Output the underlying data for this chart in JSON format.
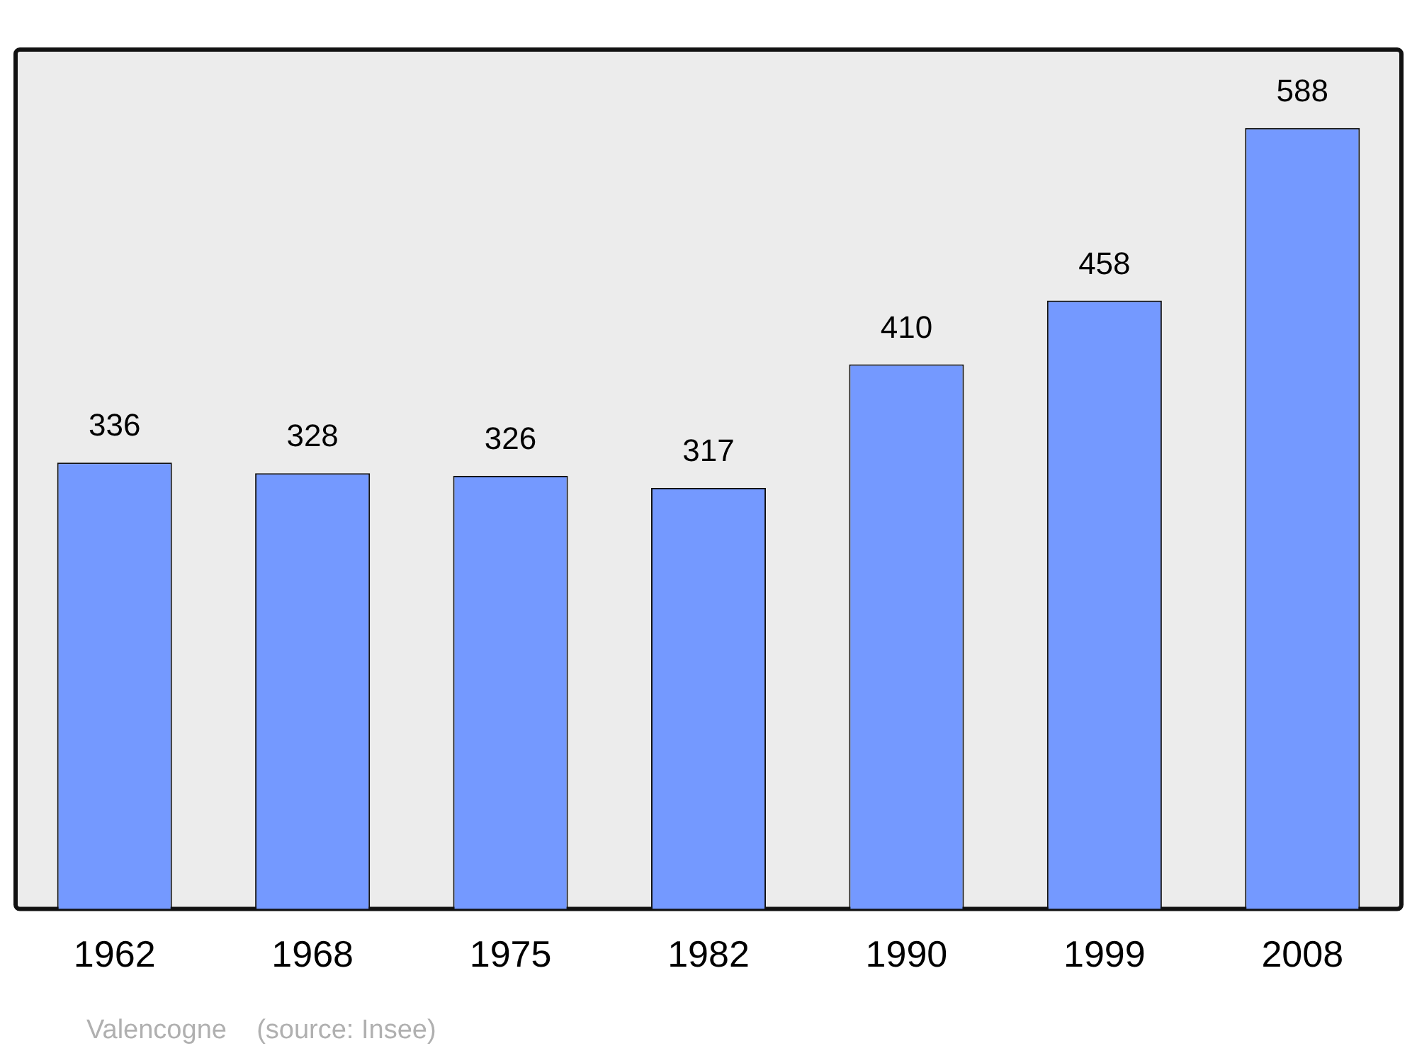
{
  "chart_data": {
    "type": "bar",
    "categories": [
      "1962",
      "1968",
      "1975",
      "1982",
      "1990",
      "1999",
      "2008"
    ],
    "values": [
      336,
      328,
      326,
      317,
      410,
      458,
      588
    ],
    "color": "#7499ff",
    "ylim": [
      0,
      647
    ],
    "data_labels": true,
    "grid": false,
    "legend": false,
    "annotations": [
      "Valencogne    (source: Insee)"
    ]
  }
}
